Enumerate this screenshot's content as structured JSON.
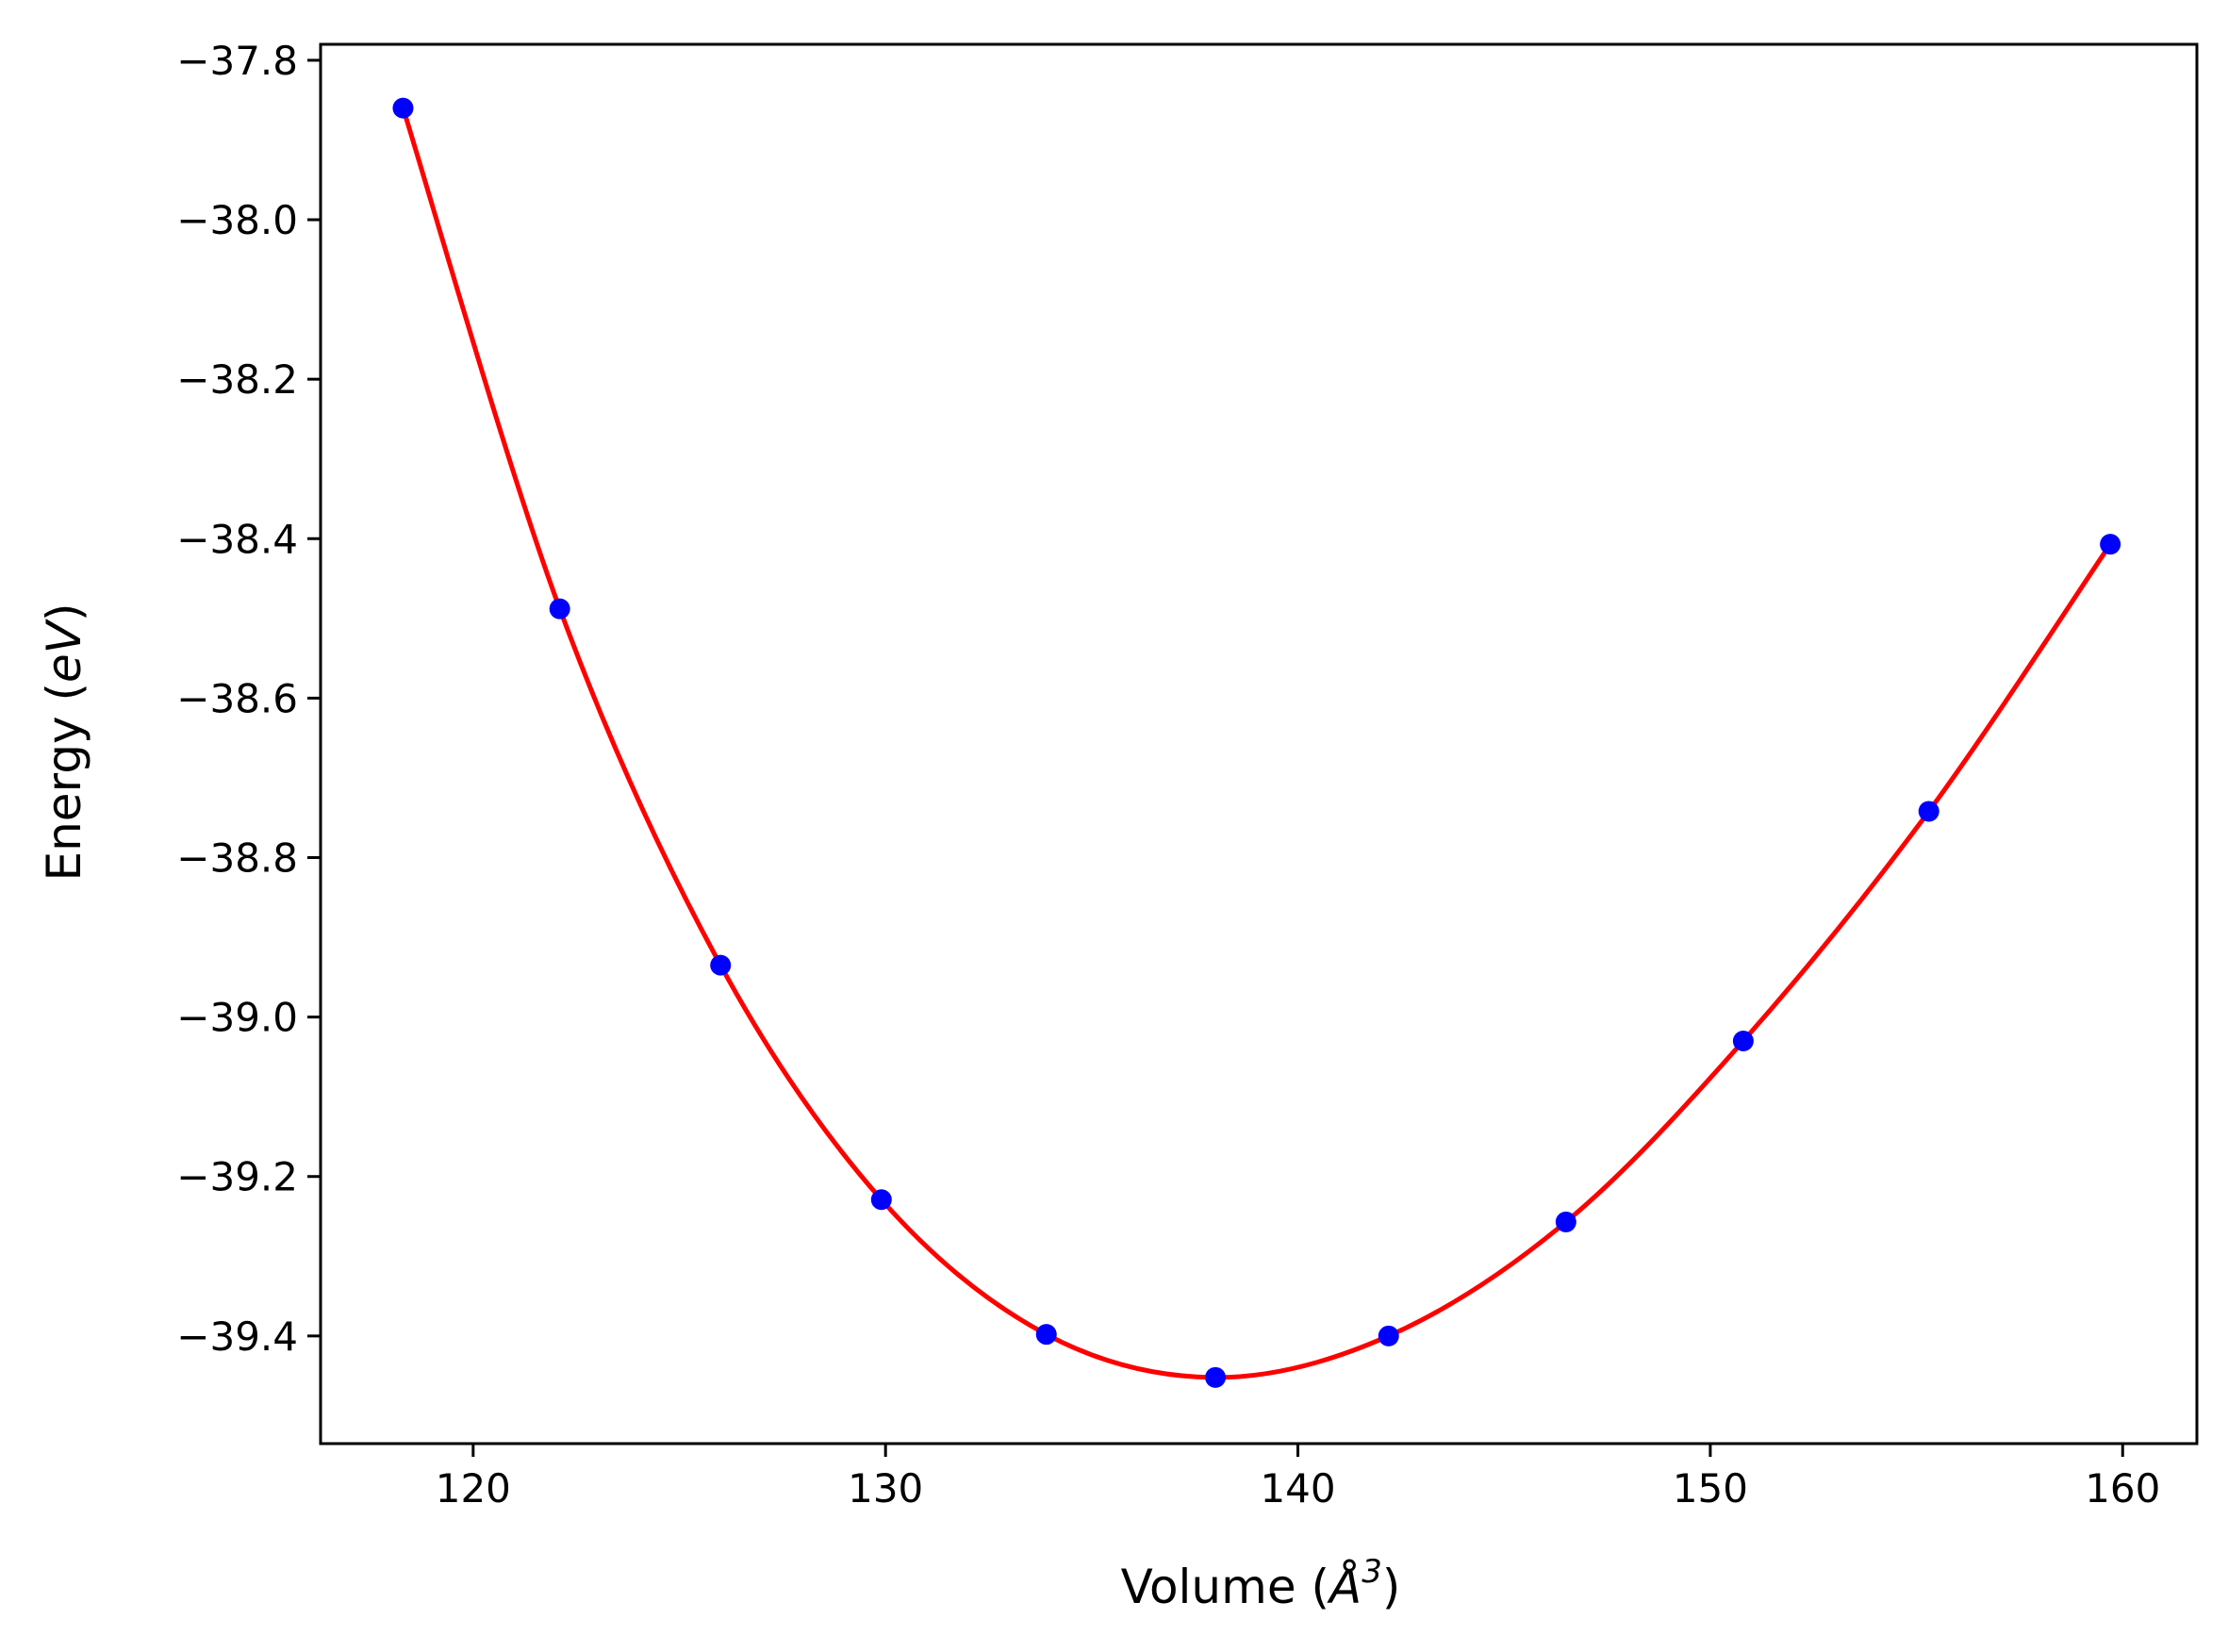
{
  "chart_data": {
    "type": "scatter",
    "title": "",
    "xlabel": "Volume (Å³)",
    "ylabel": "Energy (eV)",
    "xlabel_parts": {
      "prefix": "Volume (",
      "unit": "Å",
      "sup": "3",
      "suffix": ")"
    },
    "ylabel_parts": {
      "prefix": "Energy (",
      "unit": "eV",
      "suffix": ")"
    },
    "xlim": [
      116.3,
      161.8
    ],
    "ylim": [
      -39.535,
      -37.78
    ],
    "x_ticks": [
      120,
      130,
      140,
      150,
      160
    ],
    "y_ticks": [
      -37.8,
      -38.0,
      -38.2,
      -38.4,
      -38.6,
      -38.8,
      -39.0,
      -39.2,
      -39.4
    ],
    "x_tick_labels": [
      "120",
      "130",
      "140",
      "150",
      "160"
    ],
    "y_tick_labels": [
      "−37.8",
      "−38.0",
      "−38.2",
      "−38.4",
      "−38.6",
      "−38.8",
      "−39.0",
      "−39.2",
      "−39.4"
    ],
    "grid": false,
    "legend": "none",
    "series": [
      {
        "type": "scatter",
        "color": "#0000ff",
        "x": [
          118.3,
          122.1,
          126.0,
          129.9,
          133.9,
          138.0,
          142.2,
          146.5,
          150.8,
          155.3,
          159.7
        ],
        "y": [
          -37.86,
          -38.488,
          -38.935,
          -39.229,
          -39.398,
          -39.452,
          -39.4,
          -39.257,
          -39.03,
          -38.742,
          -38.407
        ]
      },
      {
        "type": "line",
        "color": "#ff0000",
        "fit": "smooth"
      }
    ]
  }
}
